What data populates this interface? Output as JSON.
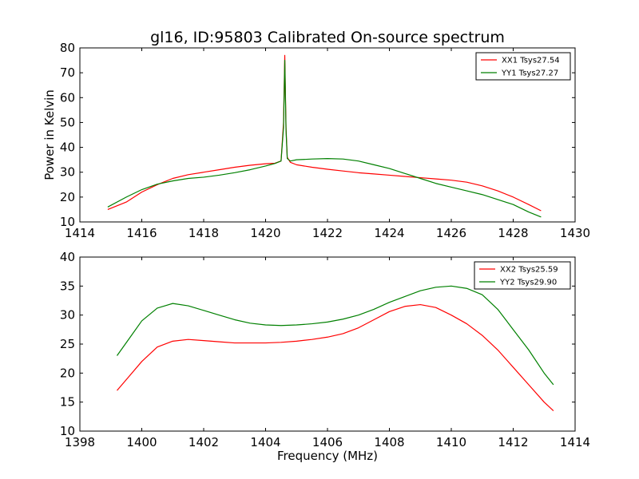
{
  "figure": {
    "title": "gl16, ID:95803 Calibrated On-source spectrum"
  },
  "chart_data": [
    {
      "type": "line",
      "xlabel": "",
      "ylabel": "Power in Kelvin",
      "xlim": [
        1414,
        1430
      ],
      "ylim": [
        10,
        80
      ],
      "xticks": [
        1414,
        1416,
        1418,
        1420,
        1422,
        1424,
        1426,
        1428,
        1430
      ],
      "yticks": [
        10,
        20,
        30,
        40,
        50,
        60,
        70,
        80
      ],
      "grid": false,
      "legend_placement": "top-right",
      "series": [
        {
          "name": "XX1 Tsys27.54",
          "color": "#ff0000",
          "x": [
            1414.9,
            1415.5,
            1416.0,
            1416.5,
            1417.0,
            1417.5,
            1418.0,
            1418.5,
            1419.0,
            1419.5,
            1420.0,
            1420.3,
            1420.5,
            1420.58,
            1420.62,
            1420.66,
            1420.7,
            1420.8,
            1421.0,
            1421.5,
            1422.0,
            1422.5,
            1423.0,
            1423.5,
            1424.0,
            1424.5,
            1425.0,
            1425.5,
            1426.0,
            1426.5,
            1427.0,
            1427.5,
            1428.0,
            1428.5,
            1428.9
          ],
          "y": [
            15,
            18,
            22,
            25,
            27.5,
            29,
            30,
            31,
            32,
            32.8,
            33.4,
            33.6,
            34.5,
            50,
            77,
            48,
            36,
            34,
            33,
            32,
            31.2,
            30.5,
            29.8,
            29.3,
            28.8,
            28.3,
            27.8,
            27.3,
            26.8,
            26,
            24.5,
            22.5,
            20,
            17,
            14.5
          ]
        },
        {
          "name": "YY1 Tsys27.27",
          "color": "#008000",
          "x": [
            1414.9,
            1415.5,
            1416.0,
            1416.5,
            1417.0,
            1417.5,
            1418.0,
            1418.5,
            1419.0,
            1419.5,
            1420.0,
            1420.3,
            1420.5,
            1420.58,
            1420.62,
            1420.66,
            1420.7,
            1420.8,
            1421.0,
            1421.5,
            1422.0,
            1422.5,
            1423.0,
            1423.5,
            1424.0,
            1424.5,
            1425.0,
            1425.5,
            1426.0,
            1426.5,
            1427.0,
            1427.5,
            1428.0,
            1428.5,
            1428.9
          ],
          "y": [
            16,
            20,
            23,
            25.2,
            26.5,
            27.5,
            28,
            28.8,
            29.8,
            31,
            32.5,
            33.5,
            34.5,
            48,
            75,
            47,
            35.5,
            34.5,
            35,
            35.3,
            35.5,
            35.3,
            34.5,
            33,
            31.5,
            29.5,
            27.5,
            25.5,
            24,
            22.5,
            21,
            19,
            17,
            14,
            12
          ]
        }
      ]
    },
    {
      "type": "line",
      "xlabel": "Frequency (MHz)",
      "ylabel": "",
      "xlim": [
        1398,
        1414
      ],
      "ylim": [
        10,
        40
      ],
      "xticks": [
        1398,
        1400,
        1402,
        1404,
        1406,
        1408,
        1410,
        1412,
        1414
      ],
      "yticks": [
        10,
        15,
        20,
        25,
        30,
        35,
        40
      ],
      "grid": false,
      "legend_placement": "top-right",
      "series": [
        {
          "name": "XX2 Tsys25.59",
          "color": "#ff0000",
          "x": [
            1399.2,
            1399.6,
            1400.0,
            1400.5,
            1401.0,
            1401.5,
            1402.0,
            1402.5,
            1403.0,
            1403.5,
            1404.0,
            1404.5,
            1405.0,
            1405.5,
            1406.0,
            1406.5,
            1407.0,
            1407.5,
            1408.0,
            1408.5,
            1409.0,
            1409.5,
            1410.0,
            1410.5,
            1411.0,
            1411.5,
            1412.0,
            1412.5,
            1413.0,
            1413.3
          ],
          "y": [
            17,
            19.5,
            22,
            24.5,
            25.5,
            25.8,
            25.6,
            25.4,
            25.2,
            25.2,
            25.2,
            25.3,
            25.5,
            25.8,
            26.2,
            26.8,
            27.8,
            29.2,
            30.6,
            31.5,
            31.8,
            31.3,
            30,
            28.5,
            26.5,
            24,
            21,
            18,
            15,
            13.5
          ]
        },
        {
          "name": "YY2 Tsys29.90",
          "color": "#008000",
          "x": [
            1399.2,
            1399.6,
            1400.0,
            1400.5,
            1401.0,
            1401.5,
            1402.0,
            1402.5,
            1403.0,
            1403.5,
            1404.0,
            1404.5,
            1405.0,
            1405.5,
            1406.0,
            1406.5,
            1407.0,
            1407.5,
            1408.0,
            1408.5,
            1409.0,
            1409.5,
            1410.0,
            1410.5,
            1411.0,
            1411.5,
            1412.0,
            1412.5,
            1413.0,
            1413.3
          ],
          "y": [
            23,
            26,
            29,
            31.2,
            32,
            31.6,
            30.8,
            30,
            29.2,
            28.6,
            28.3,
            28.2,
            28.3,
            28.5,
            28.8,
            29.3,
            30,
            31,
            32.2,
            33.2,
            34.2,
            34.8,
            35,
            34.6,
            33.5,
            31,
            27.5,
            24,
            20,
            18
          ]
        }
      ]
    }
  ]
}
